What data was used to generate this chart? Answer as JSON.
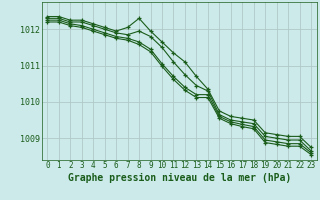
{
  "background_color": "#cceaea",
  "grid_color": "#b0c8c8",
  "line_color": "#1a5c1a",
  "xlabel": "Graphe pression niveau de la mer (hPa)",
  "xlabel_fontsize": 7,
  "xtick_fontsize": 5.5,
  "ytick_fontsize": 6,
  "ylim": [
    1008.4,
    1012.75
  ],
  "xlim": [
    -0.5,
    23.5
  ],
  "yticks": [
    1009,
    1010,
    1011,
    1012
  ],
  "xticks": [
    0,
    1,
    2,
    3,
    4,
    5,
    6,
    7,
    8,
    9,
    10,
    11,
    12,
    13,
    14,
    15,
    16,
    17,
    18,
    19,
    20,
    21,
    22,
    23
  ],
  "series": [
    [
      1012.35,
      1012.35,
      1012.25,
      1012.25,
      1012.15,
      1012.05,
      1011.95,
      1012.05,
      1012.3,
      1011.95,
      1011.65,
      1011.35,
      1011.1,
      1010.7,
      1010.35,
      1009.75,
      1009.6,
      1009.55,
      1009.5,
      1009.15,
      1009.1,
      1009.05,
      1009.05,
      1008.75
    ],
    [
      1012.3,
      1012.3,
      1012.2,
      1012.2,
      1012.1,
      1012.0,
      1011.9,
      1011.85,
      1011.95,
      1011.8,
      1011.5,
      1011.1,
      1010.75,
      1010.45,
      1010.3,
      1009.65,
      1009.5,
      1009.45,
      1009.4,
      1009.05,
      1009.0,
      1008.95,
      1008.95,
      1008.65
    ],
    [
      1012.25,
      1012.25,
      1012.15,
      1012.1,
      1012.0,
      1011.9,
      1011.8,
      1011.75,
      1011.65,
      1011.45,
      1011.05,
      1010.7,
      1010.4,
      1010.2,
      1010.2,
      1009.6,
      1009.45,
      1009.38,
      1009.32,
      1008.95,
      1008.9,
      1008.85,
      1008.85,
      1008.6
    ],
    [
      1012.2,
      1012.2,
      1012.1,
      1012.05,
      1011.95,
      1011.85,
      1011.75,
      1011.7,
      1011.58,
      1011.38,
      1010.98,
      1010.62,
      1010.32,
      1010.12,
      1010.12,
      1009.55,
      1009.4,
      1009.32,
      1009.26,
      1008.88,
      1008.83,
      1008.78,
      1008.78,
      1008.55
    ]
  ]
}
